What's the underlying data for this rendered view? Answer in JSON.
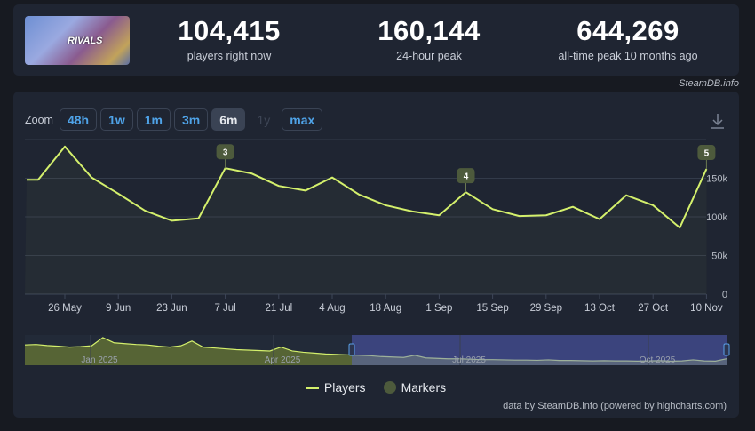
{
  "header": {
    "thumbnail_text": "RIVALS",
    "stats": [
      {
        "value": "104,415",
        "label": "players right now"
      },
      {
        "value": "160,144",
        "label": "24-hour peak"
      },
      {
        "value": "644,269",
        "label": "all-time peak 10 months ago"
      }
    ],
    "credit": "SteamDB.info"
  },
  "zoom": {
    "label": "Zoom",
    "buttons": [
      "48h",
      "1w",
      "1m",
      "3m",
      "6m",
      "1y",
      "max"
    ],
    "active": "6m",
    "disabled": "1y"
  },
  "download_icon": "download-icon",
  "chart_data": {
    "type": "line",
    "x_tick_labels": [
      "26 May",
      "9 Jun",
      "23 Jun",
      "7 Jul",
      "21 Jul",
      "4 Aug",
      "18 Aug",
      "1 Sep",
      "15 Sep",
      "29 Sep",
      "13 Oct",
      "27 Oct",
      "10 Nov"
    ],
    "y_tick_labels": [
      "0",
      "50k",
      "100k",
      "150k"
    ],
    "ylim": [
      0,
      200000
    ],
    "grid": true,
    "series": [
      {
        "name": "Players",
        "color": "#d4f06c",
        "x": [
          "2025-05-16",
          "2025-05-19",
          "2025-05-26",
          "2025-06-02",
          "2025-06-09",
          "2025-06-16",
          "2025-06-23",
          "2025-06-30",
          "2025-07-07",
          "2025-07-14",
          "2025-07-21",
          "2025-07-28",
          "2025-08-04",
          "2025-08-11",
          "2025-08-18",
          "2025-08-25",
          "2025-09-01",
          "2025-09-08",
          "2025-09-15",
          "2025-09-22",
          "2025-09-29",
          "2025-10-06",
          "2025-10-13",
          "2025-10-20",
          "2025-10-27",
          "2025-11-03",
          "2025-11-10"
        ],
        "y": [
          148000,
          148000,
          191000,
          151000,
          130000,
          108000,
          95000,
          98000,
          163000,
          156000,
          140000,
          134000,
          151000,
          129000,
          115000,
          107000,
          102000,
          132000,
          110000,
          101000,
          102000,
          113000,
          97000,
          128000,
          115000,
          86000,
          162000
        ]
      }
    ],
    "markers": [
      {
        "label": "3",
        "x": "2025-07-07"
      },
      {
        "label": "4",
        "x": "2025-09-08"
      },
      {
        "label": "5",
        "x": "2025-11-10"
      }
    ],
    "navigator": {
      "labels": [
        "Jan 2025",
        "Apr 2025",
        "Jul 2025",
        "Oct 2025"
      ],
      "values_k": [
        470,
        480,
        455,
        440,
        420,
        430,
        450,
        640,
        520,
        500,
        480,
        470,
        440,
        420,
        450,
        560,
        420,
        400,
        380,
        360,
        350,
        340,
        330,
        420,
        330,
        300,
        280,
        260,
        250,
        240,
        230,
        220,
        200,
        190,
        180,
        230,
        170,
        160,
        150,
        150,
        140,
        130,
        130,
        125,
        120,
        120,
        115,
        125,
        110,
        110,
        105,
        100,
        105,
        100,
        100,
        95,
        100,
        105,
        95,
        100,
        125,
        100,
        95,
        150
      ],
      "selected_from": "2025-05-16",
      "selected_to": "2025-11-10"
    },
    "legend": [
      "Players",
      "Markers"
    ],
    "marker_color": "#4d5a3c",
    "credit": "data by SteamDB.info (powered by highcharts.com)"
  }
}
